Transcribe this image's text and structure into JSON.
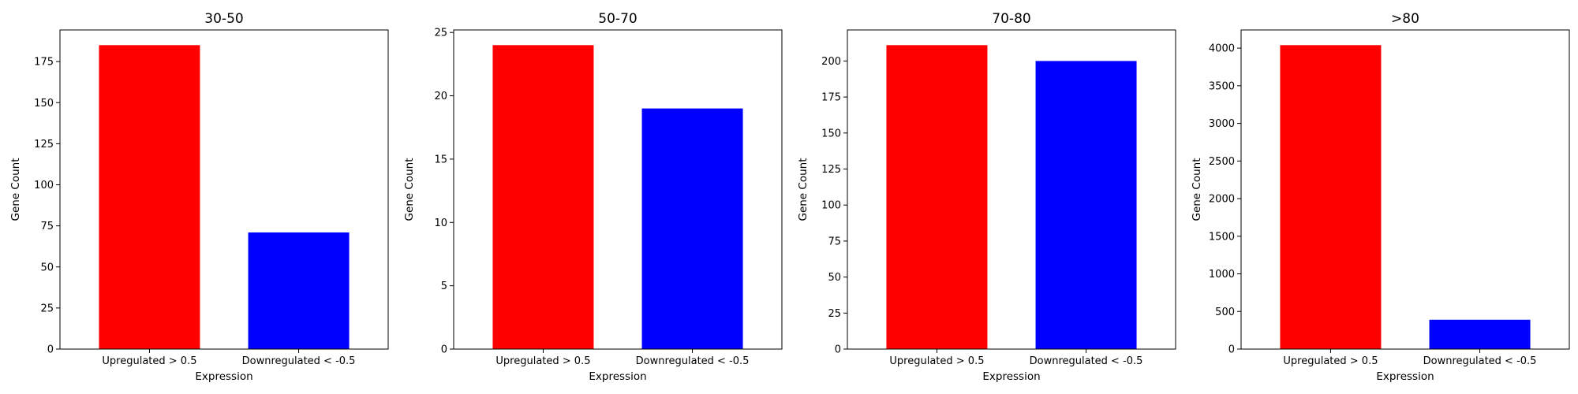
{
  "chart_data": [
    {
      "type": "bar",
      "title": "30-50",
      "xlabel": "Expression",
      "ylabel": "Gene Count",
      "categories": [
        "Upregulated > 0.5",
        "Downregulated < -0.5"
      ],
      "values": [
        185,
        71
      ],
      "colors": [
        "#ff0000",
        "#0000ff"
      ],
      "ylim": [
        0,
        194.25
      ],
      "yticks": [
        0,
        25,
        50,
        75,
        100,
        125,
        150,
        175
      ],
      "ytick_labels": [
        "0",
        "25",
        "50",
        "75",
        "100",
        "125",
        "150",
        "175"
      ]
    },
    {
      "type": "bar",
      "title": "50-70",
      "xlabel": "Expression",
      "ylabel": "Gene Count",
      "categories": [
        "Upregulated > 0.5",
        "Downregulated < -0.5"
      ],
      "values": [
        24,
        19
      ],
      "colors": [
        "#ff0000",
        "#0000ff"
      ],
      "ylim": [
        0,
        25.2
      ],
      "yticks": [
        0,
        5,
        10,
        15,
        20,
        25
      ],
      "ytick_labels": [
        "0",
        "5",
        "10",
        "15",
        "20",
        "25"
      ]
    },
    {
      "type": "bar",
      "title": "70-80",
      "xlabel": "Expression",
      "ylabel": "Gene Count",
      "categories": [
        "Upregulated > 0.5",
        "Downregulated < -0.5"
      ],
      "values": [
        211,
        200
      ],
      "colors": [
        "#ff0000",
        "#0000ff"
      ],
      "ylim": [
        0,
        221.55
      ],
      "yticks": [
        0,
        25,
        50,
        75,
        100,
        125,
        150,
        175,
        200
      ],
      "ytick_labels": [
        "0",
        "25",
        "50",
        "75",
        "100",
        "125",
        "150",
        "175",
        "200"
      ]
    },
    {
      "type": "bar",
      "title": ">80",
      "xlabel": "Expression",
      "ylabel": "Gene Count",
      "categories": [
        "Upregulated > 0.5",
        "Downregulated < -0.5"
      ],
      "values": [
        4040,
        390
      ],
      "colors": [
        "#ff0000",
        "#0000ff"
      ],
      "ylim": [
        0,
        4242
      ],
      "yticks": [
        0,
        500,
        1000,
        1500,
        2000,
        2500,
        3000,
        3500,
        4000
      ],
      "ytick_labels": [
        "0",
        "500",
        "1000",
        "1500",
        "2000",
        "2500",
        "3000",
        "3500",
        "4000"
      ]
    }
  ]
}
